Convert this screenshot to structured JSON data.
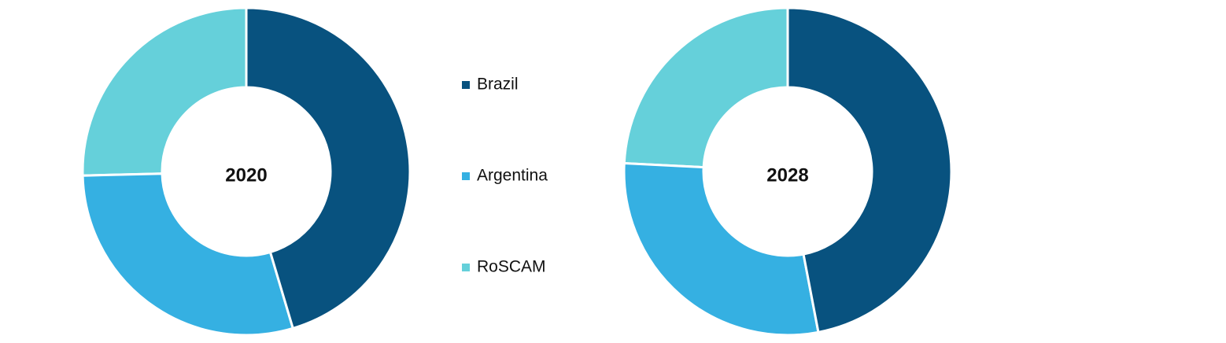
{
  "chart_data": [
    {
      "type": "donut",
      "title": "2020",
      "categories": [
        "Brazil",
        "Argentina",
        "RoSCAM"
      ],
      "values": [
        45.4,
        29.2,
        25.4
      ],
      "colors": [
        "#08527f",
        "#35b0e2",
        "#65d0da"
      ]
    },
    {
      "type": "donut",
      "title": "2028",
      "values": [
        47,
        28.8,
        24.2
      ]
    }
  ]
}
